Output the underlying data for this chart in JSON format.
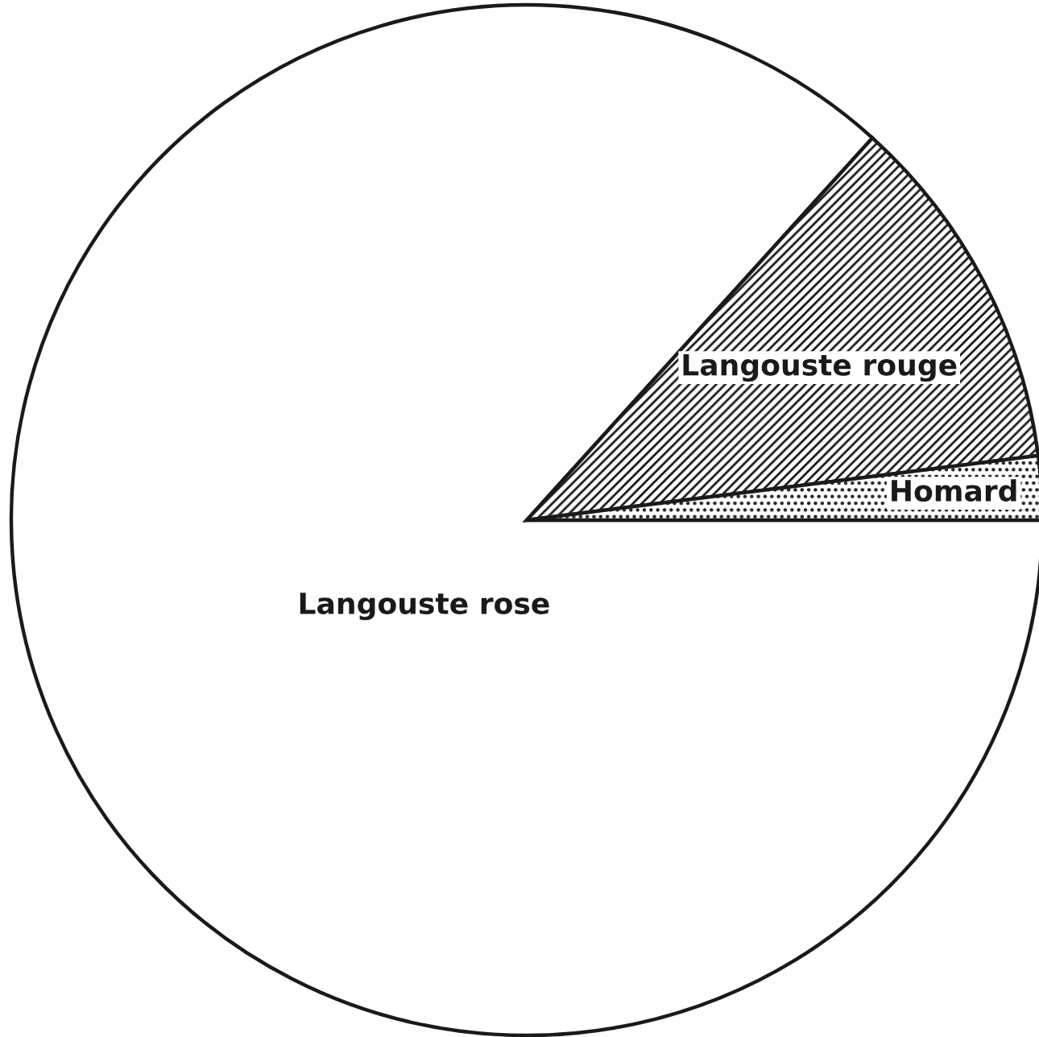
{
  "chart_data": {
    "type": "pie",
    "categories": [
      "Langouste rose",
      "Langouste rouge",
      "Homard"
    ],
    "values": [
      86.7,
      11.3,
      2
    ],
    "colors": [
      "#ffffff",
      "#1a1a1a",
      "#1a1a1a"
    ]
  }
}
